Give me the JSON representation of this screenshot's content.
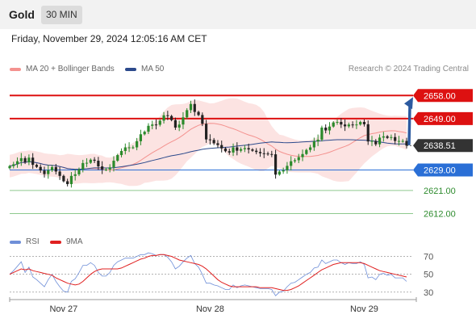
{
  "header": {
    "title": "Gold",
    "timeframe": "30 MIN"
  },
  "datetime": "Friday, November 29, 2024 12:05:16 AM CET",
  "legend": {
    "ma20": {
      "label": "MA 20 + Bollinger Bands",
      "color": "#f4928f"
    },
    "ma50": {
      "label": "MA 50",
      "color": "#2c4a8c"
    }
  },
  "credit": "Research © 2024 Trading Central",
  "rsi_legend": {
    "rsi": {
      "label": "RSI",
      "color": "#6f8fd8"
    },
    "ma9": {
      "label": "9MA",
      "color": "#e02020"
    }
  },
  "chart_data": [
    {
      "type": "candlestick",
      "title": "Gold",
      "timeframe": "30 MIN",
      "x_tick_labels": [
        "Nov 27",
        "Nov 28",
        "Nov 29"
      ],
      "ylim": [
        2604,
        2665
      ],
      "last_price": 2638.51,
      "levels": [
        {
          "label": "2658.00",
          "value": 2658.0,
          "kind": "resistance",
          "color": "#dd1111"
        },
        {
          "label": "2649.00",
          "value": 2649.0,
          "kind": "resistance",
          "color": "#dd1111"
        },
        {
          "label": "2638.51",
          "value": 2638.51,
          "kind": "last",
          "color": "#333333"
        },
        {
          "label": "2629.00",
          "value": 2629.0,
          "kind": "pivot",
          "color": "#2a6fd6"
        },
        {
          "label": "2621.00",
          "value": 2621.0,
          "kind": "support",
          "color": "#2e8b2e"
        },
        {
          "label": "2612.00",
          "value": 2612.0,
          "kind": "support",
          "color": "#2e8b2e"
        }
      ],
      "close": [
        2630.5,
        2631.2,
        2632.4,
        2633.6,
        2632.0,
        2633.8,
        2631.0,
        2630.2,
        2628.8,
        2627.4,
        2628.9,
        2630.1,
        2628.4,
        2626.7,
        2624.6,
        2623.5,
        2626.7,
        2627.3,
        2629.2,
        2631.7,
        2631.8,
        2633.0,
        2632.6,
        2630.4,
        2629.2,
        2629.2,
        2630.0,
        2632.6,
        2634.8,
        2636.4,
        2637.8,
        2637.8,
        2637.8,
        2640.2,
        2642.9,
        2643.9,
        2646.2,
        2646.7,
        2646.6,
        2648.2,
        2650.3,
        2650.0,
        2648.4,
        2645.5,
        2646.7,
        2649.5,
        2652.3,
        2654.7,
        2651.6,
        2650.4,
        2647.0,
        2640.9,
        2640.7,
        2639.4,
        2638.7,
        2637.4,
        2636.3,
        2635.8,
        2637.8,
        2636.5,
        2637.1,
        2637.5,
        2637.0,
        2636.5,
        2636.0,
        2635.5,
        2635.4,
        2635.2,
        2635.1,
        2627.2,
        2628.4,
        2628.9,
        2630.6,
        2632.4,
        2632.8,
        2634.0,
        2635.2,
        2636.8,
        2637.8,
        2640.1,
        2640.8,
        2645.5,
        2644.4,
        2645.9,
        2647.5,
        2647.7,
        2646.7,
        2646.0,
        2646.7,
        2646.5,
        2646.7,
        2647.7,
        2646.8,
        2640.1,
        2640.3,
        2639.0,
        2641.6,
        2642.1,
        2641.5,
        2641.8,
        2640.3,
        2640.3,
        2640.3,
        2638.5
      ]
    },
    {
      "type": "line",
      "title": "RSI",
      "x_tick_labels": [
        "Nov 27",
        "Nov 28",
        "Nov 29"
      ],
      "ylim": [
        28,
        75
      ],
      "y_ticks": [
        30,
        50,
        70
      ],
      "series": [
        {
          "name": "RSI",
          "color": "#6f8fd8",
          "values": [
            50,
            54,
            59,
            64,
            52,
            58,
            47,
            44,
            40,
            36,
            44,
            50,
            42,
            36,
            31,
            30,
            42,
            45,
            52,
            60,
            60,
            63,
            60,
            52,
            48,
            48,
            52,
            60,
            64,
            66,
            68,
            68,
            68,
            70,
            72,
            72,
            74,
            73,
            71,
            72,
            72,
            69,
            64,
            56,
            59,
            64,
            68,
            71,
            62,
            58,
            50,
            40,
            40,
            38,
            37,
            35,
            33,
            33,
            38,
            35,
            37,
            38,
            37,
            36,
            35,
            34,
            34,
            34,
            33,
            26,
            30,
            31,
            36,
            40,
            41,
            44,
            47,
            50,
            52,
            57,
            58,
            66,
            62,
            64,
            66,
            66,
            63,
            61,
            63,
            62,
            62,
            64,
            61,
            46,
            47,
            44,
            50,
            51,
            49,
            50,
            46,
            46,
            46,
            42
          ]
        },
        {
          "name": "9MA",
          "color": "#e02020",
          "values": [
            50,
            52,
            54,
            56,
            55,
            56,
            54,
            53,
            52,
            51,
            50,
            49,
            46,
            44,
            42,
            40,
            39,
            38,
            39,
            42,
            46,
            50,
            53,
            55,
            56,
            56,
            56,
            56,
            56,
            57,
            59,
            61,
            63,
            65,
            67,
            68,
            70,
            71,
            71,
            72,
            72,
            71,
            70,
            68,
            66,
            65,
            64,
            63,
            62,
            61,
            59,
            56,
            52,
            48,
            44,
            41,
            39,
            37,
            36,
            36,
            36,
            36,
            36,
            36,
            36,
            35,
            35,
            35,
            35,
            34,
            33,
            32,
            32,
            33,
            35,
            37,
            40,
            43,
            46,
            49,
            52,
            55,
            57,
            59,
            61,
            62,
            63,
            63,
            63,
            63,
            63,
            63,
            62,
            60,
            58,
            56,
            54,
            53,
            52,
            51,
            50,
            49,
            48,
            47
          ]
        }
      ]
    }
  ]
}
